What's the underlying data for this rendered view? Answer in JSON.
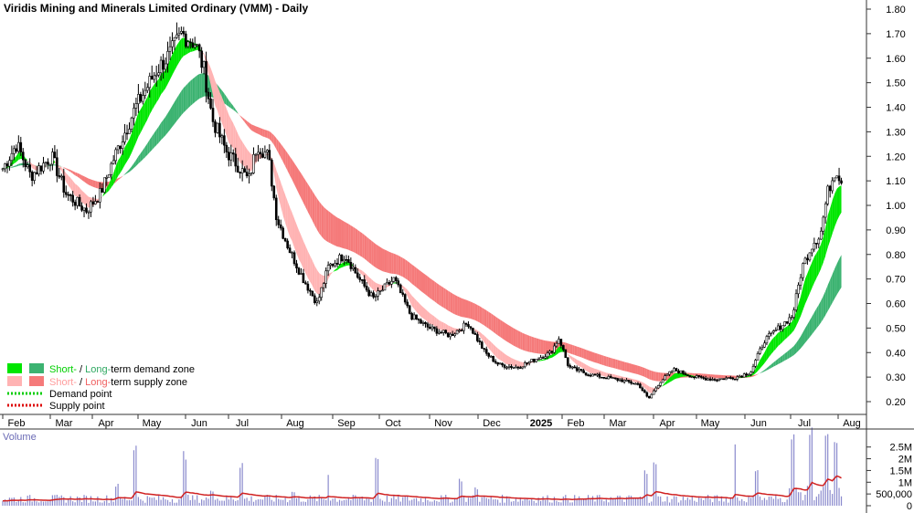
{
  "chart_data": {
    "type": "line",
    "title": "Viridis Mining and Minerals Limited Ordinary (VMM) - Daily",
    "price_axis": {
      "ticks": [
        "1.80",
        "1.70",
        "1.60",
        "1.50",
        "1.40",
        "1.30",
        "1.20",
        "1.10",
        "1.00",
        "0.90",
        "0.80",
        "0.70",
        "0.60",
        "0.50",
        "0.40",
        "0.30",
        "0.20"
      ],
      "ylim": [
        0.13,
        1.85
      ]
    },
    "x_labels": [
      "Feb",
      "Mar",
      "Apr",
      "May",
      "Jun",
      "Jul",
      "Aug",
      "Sep",
      "Oct",
      "Nov",
      "Dec",
      "2025",
      "Feb",
      "Mar",
      "Apr",
      "May",
      "Jun",
      "Jul",
      "Aug"
    ],
    "bar_count": 372,
    "price_path": [
      [
        0,
        1.15
      ],
      [
        10,
        1.25
      ],
      [
        20,
        1.12
      ],
      [
        35,
        1.2
      ],
      [
        45,
        1.05
      ],
      [
        55,
        1.0
      ],
      [
        60,
        0.98
      ],
      [
        70,
        1.05
      ],
      [
        80,
        1.2
      ],
      [
        95,
        1.4
      ],
      [
        110,
        1.55
      ],
      [
        120,
        1.62
      ],
      [
        128,
        1.7
      ],
      [
        138,
        1.66
      ],
      [
        144,
        1.55
      ],
      [
        150,
        1.35
      ],
      [
        160,
        1.22
      ],
      [
        170,
        1.15
      ],
      [
        176,
        1.1
      ],
      [
        182,
        1.25
      ],
      [
        190,
        1.2
      ],
      [
        196,
        0.95
      ],
      [
        205,
        0.82
      ],
      [
        215,
        0.7
      ],
      [
        225,
        0.6
      ],
      [
        233,
        0.75
      ],
      [
        245,
        0.8
      ],
      [
        255,
        0.7
      ],
      [
        265,
        0.62
      ],
      [
        280,
        0.7
      ],
      [
        292,
        0.55
      ],
      [
        305,
        0.5
      ],
      [
        320,
        0.47
      ],
      [
        333,
        0.52
      ],
      [
        345,
        0.4
      ],
      [
        355,
        0.35
      ],
      [
        368,
        0.34
      ],
      [
        380,
        0.37
      ],
      [
        392,
        0.4
      ],
      [
        398,
        0.46
      ],
      [
        405,
        0.34
      ],
      [
        420,
        0.31
      ],
      [
        440,
        0.29
      ],
      [
        455,
        0.27
      ],
      [
        462,
        0.21
      ],
      [
        470,
        0.28
      ],
      [
        480,
        0.33
      ],
      [
        495,
        0.3
      ],
      [
        510,
        0.29
      ],
      [
        525,
        0.3
      ],
      [
        535,
        0.32
      ],
      [
        545,
        0.45
      ],
      [
        555,
        0.5
      ],
      [
        565,
        0.55
      ],
      [
        572,
        0.75
      ],
      [
        580,
        0.85
      ],
      [
        585,
        0.88
      ],
      [
        590,
        1.05
      ],
      [
        596,
        1.15
      ],
      [
        600,
        1.1
      ]
    ],
    "volume_axis": {
      "ticks": [
        "2.5M",
        "2M",
        "1.5M",
        "1M",
        "500,000",
        "0"
      ],
      "ylim": [
        0,
        2800000
      ]
    },
    "legend": {
      "demand_label_short": "Short-",
      "demand_label_slash": " / ",
      "demand_label_long": "Long-",
      "demand_label_rest": "term demand zone",
      "supply_label_short": "Short-",
      "supply_label_slash": " / ",
      "supply_label_long": "Long-",
      "supply_label_rest": "term supply zone",
      "demand_point": "Demand point",
      "supply_point": "Supply point"
    },
    "volume_label": "Volume",
    "colors": {
      "short_demand": "#00e600",
      "long_demand": "#3cb371",
      "short_supply": "#ffb3b3",
      "long_supply": "#f57a7a",
      "orange_zone": "#ff7f2a",
      "volume_bar": "#8a8acd",
      "volume_ma": "#d02020"
    }
  }
}
